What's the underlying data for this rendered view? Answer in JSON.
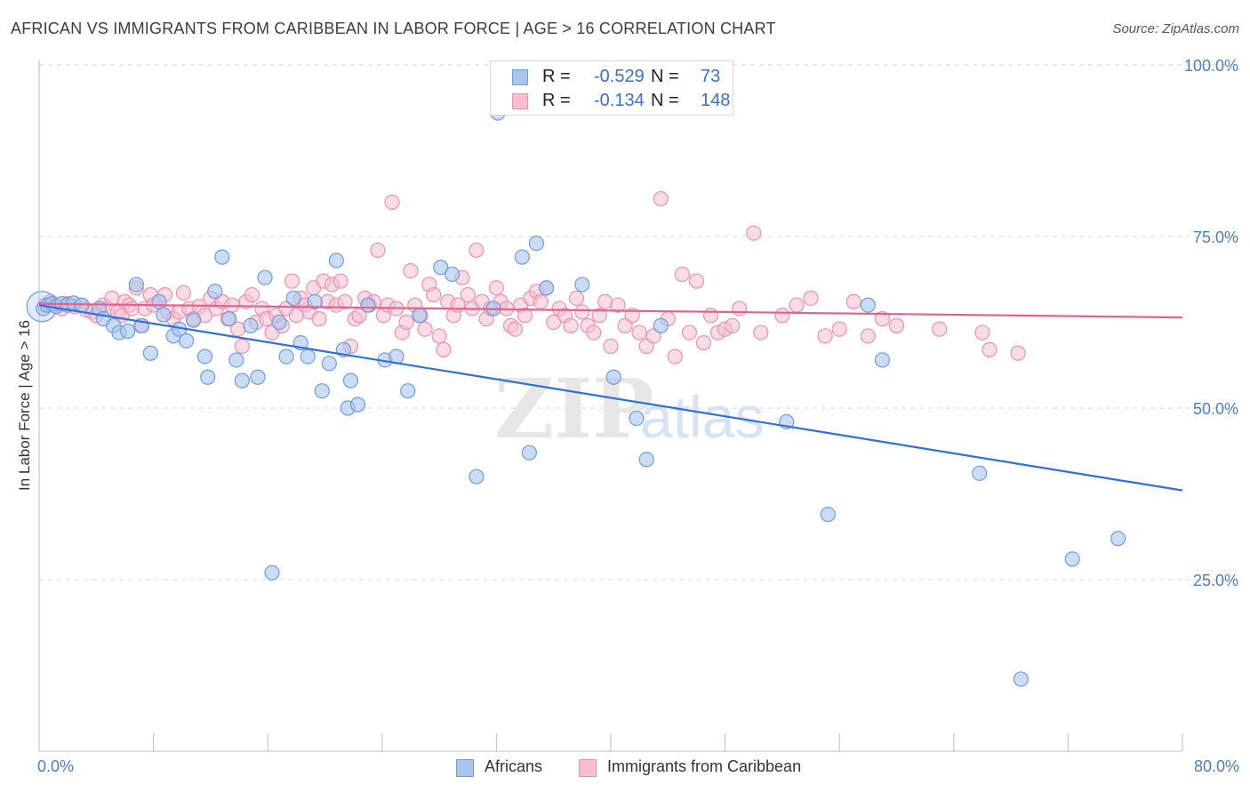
{
  "title": "AFRICAN VS IMMIGRANTS FROM CARIBBEAN IN LABOR FORCE | AGE > 16 CORRELATION CHART",
  "source": "Source: ZipAtlas.com",
  "colors": {
    "blue_fill": "#a9c6ef",
    "blue_stroke": "#6f9be0",
    "blue_line": "#2f6fd6",
    "pink_fill": "#f6bfd0",
    "pink_stroke": "#ec8fb0",
    "pink_line": "#e2628f",
    "grid": "#d6d6d6",
    "axis_text": "#4a7cc9"
  },
  "legend_top": {
    "rows": [
      {
        "r_label": "R =",
        "r_value": "-0.529",
        "n_label": "N =",
        "n_value": "73"
      },
      {
        "r_label": "R =",
        "r_value": "-0.134",
        "n_label": "N =",
        "n_value": "148"
      }
    ]
  },
  "legend_bottom": [
    "Africans",
    "Immigrants from Caribbean"
  ],
  "chart_data": {
    "type": "scatter",
    "ylabel": "In Labor Force | Age > 16",
    "xlabel": "",
    "xlim": [
      0,
      80
    ],
    "ylim": [
      0,
      100
    ],
    "x_tick_labels": [
      "0.0%",
      "80.0%"
    ],
    "y_tick_labels": [
      "100.0%",
      "75.0%",
      "50.0%",
      "25.0%"
    ],
    "y_ticks": [
      100,
      75,
      50,
      25
    ],
    "grid": true,
    "legend_position": "top-center",
    "series": [
      {
        "name": "Africans",
        "trend": [
          [
            0,
            65.0
          ],
          [
            80,
            38.0
          ]
        ],
        "points": [
          [
            0.3,
            64.5
          ],
          [
            0.6,
            65.0
          ],
          [
            0.9,
            65.2
          ],
          [
            1.2,
            64.8
          ],
          [
            1.6,
            65.2
          ],
          [
            2.0,
            65.0
          ],
          [
            2.4,
            65.3
          ],
          [
            3.0,
            65.0
          ],
          [
            4.2,
            64.5
          ],
          [
            4.5,
            63.0
          ],
          [
            5.2,
            62.0
          ],
          [
            5.6,
            61.0
          ],
          [
            6.2,
            61.2
          ],
          [
            6.8,
            68.0
          ],
          [
            7.2,
            62.0
          ],
          [
            7.8,
            58.0
          ],
          [
            8.4,
            65.5
          ],
          [
            8.7,
            63.6
          ],
          [
            9.4,
            60.5
          ],
          [
            9.8,
            61.5
          ],
          [
            10.3,
            59.8
          ],
          [
            10.8,
            62.8
          ],
          [
            11.6,
            57.5
          ],
          [
            11.8,
            54.5
          ],
          [
            12.3,
            67.0
          ],
          [
            12.8,
            72.0
          ],
          [
            13.3,
            63.0
          ],
          [
            13.8,
            57.0
          ],
          [
            14.2,
            54.0
          ],
          [
            14.8,
            62.0
          ],
          [
            15.3,
            54.5
          ],
          [
            15.8,
            69.0
          ],
          [
            16.3,
            26.0
          ],
          [
            16.8,
            62.5
          ],
          [
            17.3,
            57.5
          ],
          [
            17.8,
            66.0
          ],
          [
            18.3,
            59.5
          ],
          [
            18.8,
            57.5
          ],
          [
            19.3,
            65.5
          ],
          [
            19.8,
            52.5
          ],
          [
            20.3,
            56.5
          ],
          [
            20.8,
            71.5
          ],
          [
            21.3,
            58.5
          ],
          [
            21.6,
            50.0
          ],
          [
            21.8,
            54.0
          ],
          [
            22.3,
            50.5
          ],
          [
            23.0,
            65.0
          ],
          [
            24.2,
            57.0
          ],
          [
            25.0,
            57.5
          ],
          [
            25.8,
            52.5
          ],
          [
            26.6,
            63.5
          ],
          [
            28.1,
            70.5
          ],
          [
            28.9,
            69.5
          ],
          [
            30.6,
            40.0
          ],
          [
            31.8,
            64.5
          ],
          [
            32.1,
            93.0
          ],
          [
            33.8,
            72.0
          ],
          [
            34.3,
            43.5
          ],
          [
            34.8,
            74.0
          ],
          [
            35.5,
            67.5
          ],
          [
            38.0,
            68.0
          ],
          [
            40.2,
            54.5
          ],
          [
            41.8,
            48.5
          ],
          [
            42.5,
            42.5
          ],
          [
            43.5,
            62.0
          ],
          [
            52.3,
            48.0
          ],
          [
            55.2,
            34.5
          ],
          [
            58.0,
            65.0
          ],
          [
            59.0,
            57.0
          ],
          [
            65.8,
            40.5
          ],
          [
            68.7,
            10.5
          ],
          [
            72.3,
            28.0
          ],
          [
            75.5,
            31.0
          ]
        ]
      },
      {
        "name": "Immigrants from Caribbean",
        "trend": [
          [
            0,
            65.2
          ],
          [
            80,
            63.2
          ]
        ],
        "points": [
          [
            0.4,
            65.0
          ],
          [
            0.8,
            65.5
          ],
          [
            1.2,
            65.0
          ],
          [
            1.6,
            64.5
          ],
          [
            2.0,
            65.2
          ],
          [
            2.5,
            64.8
          ],
          [
            2.9,
            65.0
          ],
          [
            3.3,
            64.3
          ],
          [
            3.7,
            64.0
          ],
          [
            4.0,
            63.5
          ],
          [
            4.5,
            65.0
          ],
          [
            4.8,
            64.5
          ],
          [
            5.1,
            66.0
          ],
          [
            5.5,
            64.0
          ],
          [
            5.8,
            63.5
          ],
          [
            6.0,
            65.5
          ],
          [
            6.3,
            65.0
          ],
          [
            6.5,
            64.5
          ],
          [
            6.8,
            67.5
          ],
          [
            7.1,
            62.0
          ],
          [
            7.4,
            64.5
          ],
          [
            7.8,
            66.5
          ],
          [
            8.0,
            65.0
          ],
          [
            8.4,
            65.5
          ],
          [
            8.8,
            66.5
          ],
          [
            9.0,
            64.0
          ],
          [
            9.4,
            63.0
          ],
          [
            9.8,
            64.0
          ],
          [
            10.1,
            66.8
          ],
          [
            10.5,
            64.5
          ],
          [
            10.8,
            63.0
          ],
          [
            11.2,
            64.8
          ],
          [
            11.6,
            63.5
          ],
          [
            12.0,
            66.0
          ],
          [
            12.4,
            64.5
          ],
          [
            12.8,
            65.5
          ],
          [
            13.2,
            63.0
          ],
          [
            13.5,
            65.0
          ],
          [
            13.9,
            61.5
          ],
          [
            14.2,
            59.0
          ],
          [
            14.5,
            65.5
          ],
          [
            14.9,
            66.5
          ],
          [
            15.2,
            62.5
          ],
          [
            15.6,
            64.5
          ],
          [
            15.9,
            63.0
          ],
          [
            16.3,
            61.0
          ],
          [
            16.6,
            63.5
          ],
          [
            17.0,
            62.0
          ],
          [
            17.3,
            64.5
          ],
          [
            17.7,
            68.5
          ],
          [
            18.0,
            63.5
          ],
          [
            18.3,
            66.0
          ],
          [
            18.6,
            65.0
          ],
          [
            18.9,
            64.0
          ],
          [
            19.2,
            67.5
          ],
          [
            19.6,
            63.0
          ],
          [
            19.9,
            68.5
          ],
          [
            20.2,
            65.5
          ],
          [
            20.5,
            68.0
          ],
          [
            20.8,
            65.0
          ],
          [
            21.1,
            68.5
          ],
          [
            21.4,
            65.5
          ],
          [
            21.8,
            59.0
          ],
          [
            22.1,
            63.0
          ],
          [
            22.4,
            63.5
          ],
          [
            22.8,
            66.0
          ],
          [
            23.1,
            65.0
          ],
          [
            23.4,
            65.5
          ],
          [
            23.7,
            73.0
          ],
          [
            24.1,
            63.5
          ],
          [
            24.4,
            65.0
          ],
          [
            24.7,
            80.0
          ],
          [
            25.0,
            64.5
          ],
          [
            25.4,
            61.0
          ],
          [
            25.7,
            62.5
          ],
          [
            26.0,
            70.0
          ],
          [
            26.3,
            65.0
          ],
          [
            26.7,
            63.5
          ],
          [
            27.0,
            61.5
          ],
          [
            27.3,
            68.0
          ],
          [
            27.6,
            66.5
          ],
          [
            28.0,
            60.5
          ],
          [
            28.3,
            58.5
          ],
          [
            28.6,
            65.5
          ],
          [
            29.0,
            63.5
          ],
          [
            29.3,
            65.0
          ],
          [
            29.6,
            69.0
          ],
          [
            30.0,
            66.5
          ],
          [
            30.3,
            64.5
          ],
          [
            30.6,
            73.0
          ],
          [
            31.0,
            65.5
          ],
          [
            31.3,
            63.0
          ],
          [
            31.6,
            64.5
          ],
          [
            32.0,
            67.5
          ],
          [
            32.3,
            65.5
          ],
          [
            32.7,
            64.5
          ],
          [
            33.0,
            62.0
          ],
          [
            33.3,
            61.5
          ],
          [
            33.7,
            65.0
          ],
          [
            34.0,
            63.5
          ],
          [
            34.4,
            66.0
          ],
          [
            34.8,
            67.0
          ],
          [
            35.1,
            65.5
          ],
          [
            35.5,
            67.5
          ],
          [
            36.0,
            62.5
          ],
          [
            36.4,
            64.5
          ],
          [
            36.8,
            63.5
          ],
          [
            37.2,
            62.0
          ],
          [
            37.6,
            66.0
          ],
          [
            38.0,
            64.0
          ],
          [
            38.4,
            62.0
          ],
          [
            38.8,
            61.0
          ],
          [
            39.2,
            63.5
          ],
          [
            39.6,
            65.5
          ],
          [
            40.0,
            59.0
          ],
          [
            40.5,
            65.0
          ],
          [
            41.0,
            62.0
          ],
          [
            41.5,
            63.5
          ],
          [
            42.0,
            61.0
          ],
          [
            42.5,
            59.0
          ],
          [
            43.0,
            60.5
          ],
          [
            43.5,
            80.5
          ],
          [
            44.0,
            63.0
          ],
          [
            44.5,
            57.5
          ],
          [
            45.0,
            69.5
          ],
          [
            45.5,
            61.0
          ],
          [
            46.0,
            68.5
          ],
          [
            46.5,
            59.5
          ],
          [
            47.0,
            63.5
          ],
          [
            47.5,
            61.0
          ],
          [
            48.0,
            61.5
          ],
          [
            48.5,
            62.0
          ],
          [
            49.0,
            64.5
          ],
          [
            50.0,
            75.5
          ],
          [
            50.5,
            61.0
          ],
          [
            52.0,
            63.5
          ],
          [
            53.0,
            65.0
          ],
          [
            54.0,
            66.0
          ],
          [
            55.0,
            60.5
          ],
          [
            56.0,
            61.5
          ],
          [
            57.0,
            65.5
          ],
          [
            58.0,
            60.5
          ],
          [
            59.0,
            63.0
          ],
          [
            60.0,
            62.0
          ],
          [
            63.0,
            61.5
          ],
          [
            66.0,
            61.0
          ],
          [
            66.5,
            58.5
          ],
          [
            68.5,
            58.0
          ]
        ]
      }
    ]
  }
}
